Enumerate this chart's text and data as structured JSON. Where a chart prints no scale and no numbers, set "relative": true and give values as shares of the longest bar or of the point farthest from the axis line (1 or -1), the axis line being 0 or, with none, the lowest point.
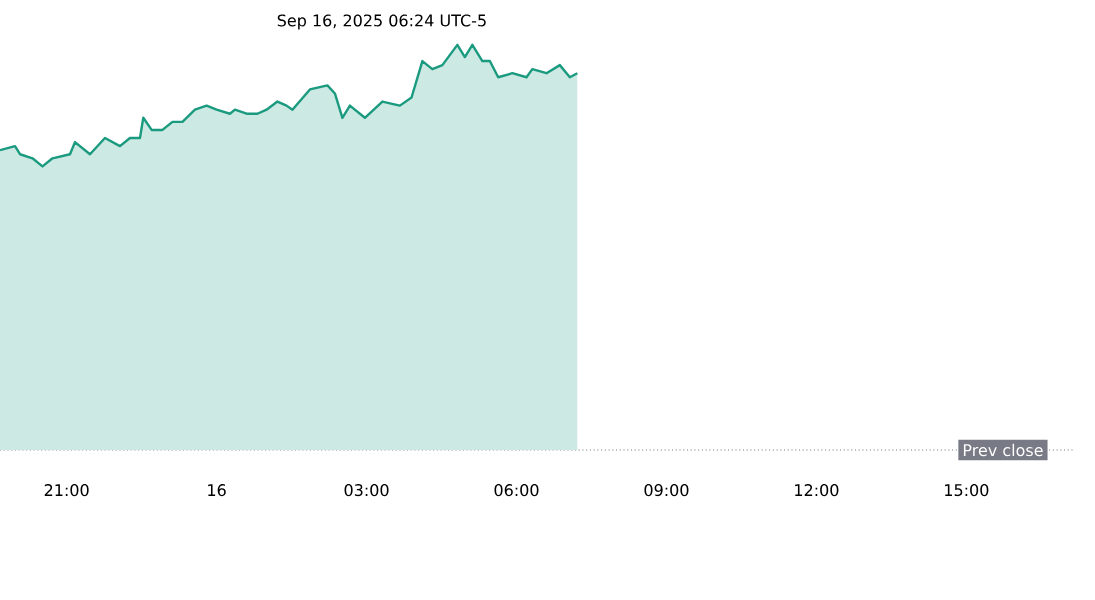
{
  "chart_data": {
    "type": "area",
    "relative": true,
    "annotations": [
      "Sep 16, 2025 06:24 UTC-5",
      "Prev close"
    ],
    "x": [
      "2025-09-15T19:40",
      "2025-09-15T19:58",
      "2025-09-15T20:04",
      "2025-09-15T20:19",
      "2025-09-15T20:31",
      "2025-09-15T20:43",
      "2025-09-15T21:04",
      "2025-09-15T21:10",
      "2025-09-15T21:28",
      "2025-09-15T21:46",
      "2025-09-15T22:04",
      "2025-09-15T22:16",
      "2025-09-15T22:28",
      "2025-09-15T22:32",
      "2025-09-15T22:42",
      "2025-09-15T22:55",
      "2025-09-15T23:07",
      "2025-09-15T23:19",
      "2025-09-15T23:34",
      "2025-09-15T23:48",
      "2025-09-16T00:00",
      "2025-09-16T00:16",
      "2025-09-16T00:22",
      "2025-09-16T00:36",
      "2025-09-16T00:49",
      "2025-09-16T01:00",
      "2025-09-16T01:13",
      "2025-09-16T01:24",
      "2025-09-16T01:31",
      "2025-09-16T01:52",
      "2025-09-16T02:13",
      "2025-09-16T02:22",
      "2025-09-16T02:31",
      "2025-09-16T02:40",
      "2025-09-16T02:58",
      "2025-09-16T03:19",
      "2025-09-16T03:40",
      "2025-09-16T03:54",
      "2025-09-16T04:07",
      "2025-09-16T04:19",
      "2025-09-16T04:31",
      "2025-09-16T04:49",
      "2025-09-16T04:58",
      "2025-09-16T05:07",
      "2025-09-16T05:19",
      "2025-09-16T05:28",
      "2025-09-16T05:38",
      "2025-09-16T05:55",
      "2025-09-16T06:12",
      "2025-09-16T06:19",
      "2025-09-16T06:36",
      "2025-09-16T06:52",
      "2025-09-16T07:04",
      "2025-09-16T07:13"
    ],
    "series": [
      {
        "color": "#1a9a7e",
        "values": [
          0.74,
          0.75,
          0.73,
          0.72,
          0.7,
          0.72,
          0.73,
          0.76,
          0.73,
          0.77,
          0.75,
          0.77,
          0.77,
          0.82,
          0.79,
          0.79,
          0.81,
          0.81,
          0.84,
          0.85,
          0.84,
          0.83,
          0.84,
          0.83,
          0.83,
          0.84,
          0.86,
          0.85,
          0.84,
          0.89,
          0.9,
          0.88,
          0.82,
          0.85,
          0.82,
          0.86,
          0.85,
          0.87,
          0.96,
          0.94,
          0.95,
          1.0,
          0.97,
          1.0,
          0.96,
          0.96,
          0.92,
          0.93,
          0.92,
          0.94,
          0.93,
          0.95,
          0.92,
          0.93
        ]
      }
    ],
    "xlim": [
      "2025-09-15T19:40",
      "2025-09-16T17:10"
    ],
    "xticks": [
      {
        "value": "2025-09-15T21:00",
        "label": "21:00"
      },
      {
        "value": "2025-09-16T00:00",
        "label": "16"
      },
      {
        "value": "2025-09-16T03:00",
        "label": "03:00"
      },
      {
        "value": "2025-09-16T06:00",
        "label": "06:00"
      },
      {
        "value": "2025-09-16T09:00",
        "label": "09:00"
      },
      {
        "value": "2025-09-16T12:00",
        "label": "12:00"
      },
      {
        "value": "2025-09-16T15:00",
        "label": "15:00"
      }
    ]
  }
}
